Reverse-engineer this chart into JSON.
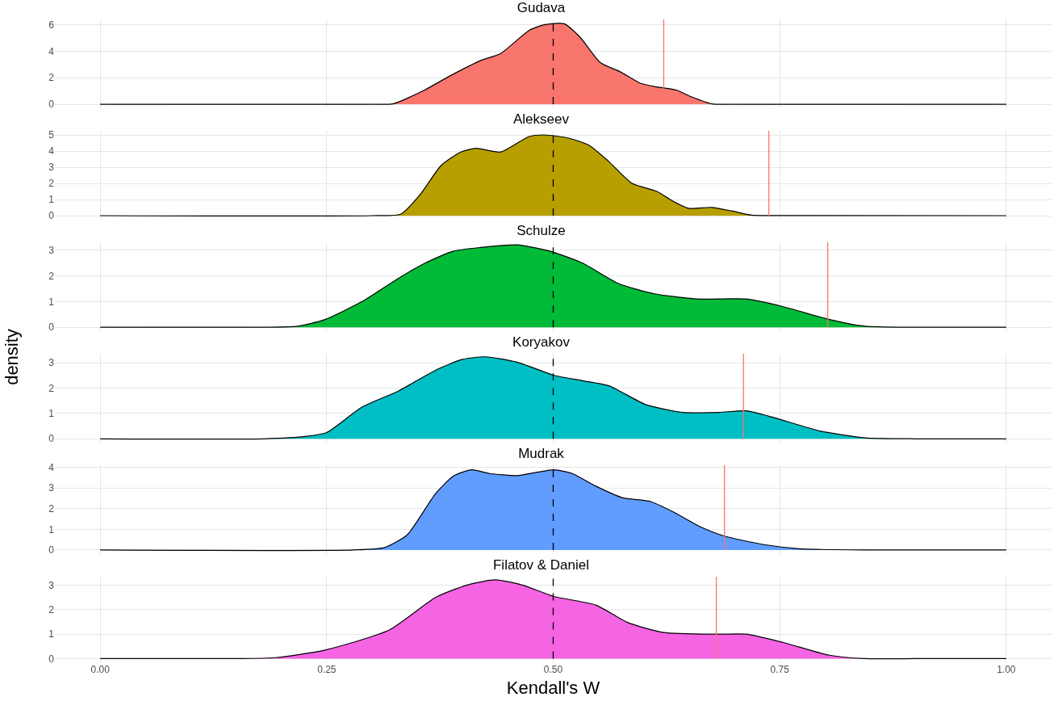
{
  "chart_data": [
    {
      "type": "area",
      "title": "Gudava",
      "xlim": [
        -0.05,
        1.05
      ],
      "xticks": [
        {
          "value": 0,
          "label": null
        },
        {
          "value": 0.25,
          "label": null
        },
        {
          "value": 0.5,
          "label": null
        },
        {
          "value": 0.75,
          "label": null
        },
        {
          "value": 1,
          "label": null
        }
      ],
      "ylim": [
        -0.3,
        6.4
      ],
      "yticks": [
        0,
        2,
        4,
        6
      ],
      "grid": true,
      "tick_labels": "y",
      "series": [
        {
          "color": "#f8766d",
          "x": [
            0,
            0.3,
            0.323,
            0.358,
            0.385,
            0.42,
            0.442,
            0.473,
            0.49,
            0.512,
            0.53,
            0.552,
            0.574,
            0.596,
            0.614,
            0.636,
            0.653,
            0.675,
            0.7,
            1
          ],
          "values": [
            0,
            0,
            0.03,
            1.07,
            2.1,
            3.3,
            3.83,
            5.55,
            6.0,
            6.07,
            5.03,
            3.14,
            2.45,
            1.59,
            1.31,
            1.07,
            0.55,
            0.03,
            0,
            0
          ]
        }
      ],
      "ref_lines": [
        {
          "axis": "x",
          "value": 0.5,
          "color": "#000000",
          "line_style": "dashed"
        },
        {
          "axis": "x",
          "value": 0.622,
          "color": "#f8766d",
          "line_style": "solid"
        }
      ]
    },
    {
      "type": "area",
      "title": "Alekseev",
      "xlim": [
        -0.05,
        1.05
      ],
      "xticks": [
        {
          "value": 0,
          "label": null
        },
        {
          "value": 0.25,
          "label": null
        },
        {
          "value": 0.5,
          "label": null
        },
        {
          "value": 0.75,
          "label": null
        },
        {
          "value": 1,
          "label": null
        }
      ],
      "ylim": [
        -0.25,
        5.25
      ],
      "yticks": [
        0,
        1,
        2,
        3,
        4,
        5
      ],
      "grid": true,
      "tick_labels": "y",
      "series": [
        {
          "color": "#b79f00",
          "x": [
            0,
            0.3,
            0.332,
            0.354,
            0.376,
            0.398,
            0.415,
            0.442,
            0.473,
            0.49,
            0.517,
            0.539,
            0.561,
            0.587,
            0.614,
            0.631,
            0.649,
            0.675,
            0.697,
            0.719,
            0.75,
            1
          ],
          "values": [
            0,
            0,
            0.1,
            1.37,
            3.09,
            3.94,
            4.17,
            3.94,
            4.89,
            5.0,
            4.8,
            4.37,
            3.37,
            2.0,
            1.51,
            0.94,
            0.46,
            0.51,
            0.29,
            0.03,
            0.01,
            0
          ]
        }
      ],
      "ref_lines": [
        {
          "axis": "x",
          "value": 0.5,
          "color": "#000000",
          "line_style": "dashed"
        },
        {
          "axis": "x",
          "value": 0.738,
          "color": "#f8766d",
          "line_style": "solid"
        }
      ]
    },
    {
      "type": "area",
      "title": "Schulze",
      "ylabel": "density",
      "xlim": [
        -0.05,
        1.05
      ],
      "xticks": [
        {
          "value": 0,
          "label": null
        },
        {
          "value": 0.25,
          "label": null
        },
        {
          "value": 0.5,
          "label": null
        },
        {
          "value": 0.75,
          "label": null
        },
        {
          "value": 1,
          "label": null
        }
      ],
      "ylim": [
        -0.15,
        3.3
      ],
      "yticks": [
        0,
        1,
        2,
        3
      ],
      "grid": true,
      "tick_labels": "y",
      "series": [
        {
          "color": "#00ba38",
          "x": [
            0,
            0.18,
            0.218,
            0.248,
            0.289,
            0.329,
            0.359,
            0.39,
            0.42,
            0.46,
            0.496,
            0.532,
            0.572,
            0.612,
            0.658,
            0.713,
            0.754,
            0.805,
            0.844,
            0.9,
            1
          ],
          "values": [
            0,
            0,
            0.04,
            0.3,
            1.0,
            1.9,
            2.5,
            2.96,
            3.1,
            3.2,
            2.96,
            2.5,
            1.7,
            1.3,
            1.1,
            1.1,
            0.8,
            0.3,
            0.04,
            0,
            0
          ]
        }
      ],
      "ref_lines": [
        {
          "axis": "x",
          "value": 0.5,
          "color": "#000000",
          "line_style": "dashed"
        },
        {
          "axis": "x",
          "value": 0.803,
          "color": "#f8766d",
          "line_style": "solid"
        }
      ]
    },
    {
      "type": "area",
      "title": "Koryakov",
      "xlim": [
        -0.05,
        1.05
      ],
      "xticks": [
        {
          "value": 0,
          "label": null
        },
        {
          "value": 0.25,
          "label": null
        },
        {
          "value": 0.5,
          "label": null
        },
        {
          "value": 0.75,
          "label": null
        },
        {
          "value": 1,
          "label": null
        }
      ],
      "ylim": [
        -0.15,
        3.35
      ],
      "yticks": [
        0,
        1,
        2,
        3
      ],
      "grid": true,
      "tick_labels": "y",
      "series": [
        {
          "color": "#00bfc4",
          "x": [
            0,
            0.18,
            0.228,
            0.25,
            0.289,
            0.329,
            0.37,
            0.4,
            0.425,
            0.46,
            0.501,
            0.532,
            0.562,
            0.602,
            0.643,
            0.683,
            0.713,
            0.744,
            0.794,
            0.844,
            0.9,
            1
          ],
          "values": [
            0,
            0,
            0.1,
            0.25,
            1.25,
            1.88,
            2.7,
            3.13,
            3.23,
            3.02,
            2.5,
            2.29,
            2.08,
            1.35,
            1.04,
            1.04,
            1.1,
            0.83,
            0.31,
            0.04,
            0,
            0
          ]
        }
      ],
      "ref_lines": [
        {
          "axis": "x",
          "value": 0.5,
          "color": "#000000",
          "line_style": "dashed"
        },
        {
          "axis": "x",
          "value": 0.71,
          "color": "#f8766d",
          "line_style": "solid"
        }
      ]
    },
    {
      "type": "area",
      "title": "Mudrak",
      "xlim": [
        -0.05,
        1.05
      ],
      "xticks": [
        {
          "value": 0,
          "label": null
        },
        {
          "value": 0.25,
          "label": null
        },
        {
          "value": 0.5,
          "label": null
        },
        {
          "value": 0.75,
          "label": null
        },
        {
          "value": 1,
          "label": null
        }
      ],
      "ylim": [
        -0.2,
        4.1
      ],
      "yticks": [
        0,
        1,
        2,
        3,
        4
      ],
      "grid": true,
      "tick_labels": "y",
      "series": [
        {
          "color": "#619cff",
          "x": [
            0,
            0.28,
            0.314,
            0.339,
            0.37,
            0.39,
            0.41,
            0.43,
            0.46,
            0.481,
            0.501,
            0.521,
            0.547,
            0.577,
            0.607,
            0.632,
            0.663,
            0.689,
            0.734,
            0.774,
            0.85,
            1
          ],
          "values": [
            0,
            0,
            0.12,
            0.74,
            2.72,
            3.58,
            3.88,
            3.7,
            3.6,
            3.75,
            3.88,
            3.7,
            3.09,
            2.52,
            2.35,
            1.85,
            1.11,
            0.67,
            0.25,
            0.05,
            0,
            0
          ]
        }
      ],
      "ref_lines": [
        {
          "axis": "x",
          "value": 0.5,
          "color": "#000000",
          "line_style": "dashed"
        },
        {
          "axis": "x",
          "value": 0.689,
          "color": "#f8766d",
          "line_style": "solid"
        }
      ]
    },
    {
      "type": "area",
      "title": "Filatov & Daniel",
      "xlabel": "Kendall's W",
      "xlim": [
        -0.05,
        1.05
      ],
      "xticks": [
        {
          "value": 0,
          "label": "0.00"
        },
        {
          "value": 0.25,
          "label": "0.25"
        },
        {
          "value": 0.5,
          "label": "0.50"
        },
        {
          "value": 0.75,
          "label": "0.75"
        },
        {
          "value": 1,
          "label": "1.00"
        }
      ],
      "ylim": [
        -0.15,
        3.35
      ],
      "yticks": [
        0,
        1,
        2,
        3
      ],
      "grid": true,
      "series": [
        {
          "color": "#f564e3",
          "x": [
            0,
            0.15,
            0.193,
            0.248,
            0.319,
            0.37,
            0.405,
            0.436,
            0.466,
            0.501,
            0.547,
            0.582,
            0.622,
            0.683,
            0.713,
            0.754,
            0.805,
            0.844,
            0.9,
            1
          ],
          "values": [
            0,
            0,
            0.04,
            0.35,
            1.17,
            2.5,
            3.01,
            3.22,
            3.01,
            2.54,
            2.19,
            1.48,
            1.07,
            1.0,
            1.0,
            0.66,
            0.14,
            0,
            0,
            0
          ]
        }
      ],
      "ref_lines": [
        {
          "axis": "x",
          "value": 0.5,
          "color": "#000000",
          "line_style": "dashed"
        },
        {
          "axis": "x",
          "value": 0.68,
          "color": "#f8766d",
          "line_style": "solid"
        }
      ]
    }
  ]
}
